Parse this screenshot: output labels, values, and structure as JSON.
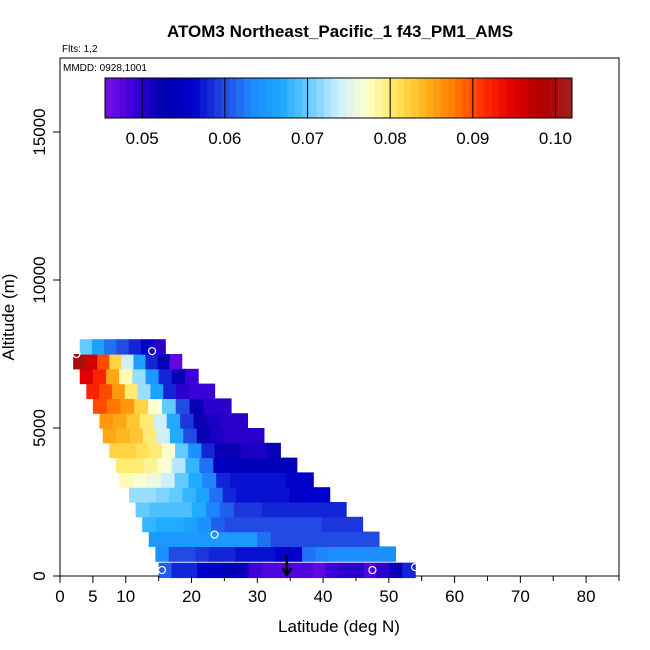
{
  "chart_data": {
    "type": "heatmap",
    "title": "ATOM3 Northeast_Pacific_1 f43_PM1_AMS",
    "flights_label": "Flts: 1,2",
    "date_label": "MMDD: 0928,1001",
    "xlabel": "Latitude (deg N)",
    "ylabel": "Altitude (m)",
    "xlim": [
      0,
      85
    ],
    "ylim": [
      0,
      17500
    ],
    "xticks": [
      0,
      5,
      10,
      20,
      30,
      40,
      50,
      60,
      70,
      80
    ],
    "yticks": [
      0,
      5000,
      10000,
      15000
    ],
    "grid": false,
    "colorbar": {
      "placement": "top-inside",
      "range": [
        0.0455,
        0.102
      ],
      "ticks": [
        0.05,
        0.06,
        0.07,
        0.08,
        0.09,
        0.1
      ],
      "tick_labels": [
        "0.05",
        "0.06",
        "0.07",
        "0.08",
        "0.09",
        "0.10"
      ],
      "colors": [
        "#7A10E6",
        "#3A00D8",
        "#0000B0",
        "#0000CC",
        "#2244E0",
        "#1E88FF",
        "#1AA8FF",
        "#66CCFF",
        "#CCEEFF",
        "#FFFFCC",
        "#FFE45A",
        "#FFB21A",
        "#FF7A00",
        "#FF2A00",
        "#E00000",
        "#B00000",
        "#A02020"
      ]
    },
    "layers": [
      {
        "alt": 200,
        "lat_start": 15,
        "lat_end": 54,
        "cells": [
          0.061,
          0.058,
          0.058,
          0.056,
          0.055,
          0.054,
          0.052,
          0.049,
          0.048,
          0.048,
          0.048,
          0.048,
          0.047,
          0.049,
          0.05,
          0.05,
          0.048,
          0.05,
          0.052,
          0.058
        ]
      },
      {
        "alt": 750,
        "lat_start": 14.5,
        "lat_end": 51,
        "cells": [
          0.064,
          0.06,
          0.06,
          0.059,
          0.058,
          0.058,
          0.057,
          0.057,
          0.057,
          0.056,
          0.056,
          0.062,
          0.063,
          0.064,
          0.064,
          0.064,
          0.064,
          0.064
        ]
      },
      {
        "alt": 1250,
        "lat_start": 13.5,
        "lat_end": 48.5,
        "cells": [
          0.065,
          0.065,
          0.065,
          0.065,
          0.065,
          0.065,
          0.065,
          0.065,
          0.062,
          0.06,
          0.06,
          0.06,
          0.06,
          0.06,
          0.06,
          0.06,
          0.06
        ]
      },
      {
        "alt": 1750,
        "lat_start": 12.5,
        "lat_end": 46,
        "cells": [
          0.068,
          0.067,
          0.067,
          0.066,
          0.064,
          0.061,
          0.06,
          0.06,
          0.06,
          0.06,
          0.06,
          0.06,
          0.06,
          0.059,
          0.059,
          0.059
        ]
      },
      {
        "alt": 2250,
        "lat_start": 11.5,
        "lat_end": 43.5,
        "cells": [
          0.07,
          0.069,
          0.069,
          0.069,
          0.067,
          0.063,
          0.061,
          0.059,
          0.059,
          0.058,
          0.058,
          0.058,
          0.058,
          0.058,
          0.058
        ]
      },
      {
        "alt": 2750,
        "lat_start": 10.5,
        "lat_end": 41,
        "cells": [
          0.072,
          0.072,
          0.071,
          0.07,
          0.068,
          0.066,
          0.062,
          0.058,
          0.057,
          0.057,
          0.057,
          0.057,
          0.056,
          0.056,
          0.056
        ]
      },
      {
        "alt": 3250,
        "lat_start": 9,
        "lat_end": 38.5,
        "cells": [
          0.078,
          0.077,
          0.076,
          0.074,
          0.07,
          0.067,
          0.063,
          0.058,
          0.057,
          0.057,
          0.057,
          0.057,
          0.056,
          0.056
        ]
      },
      {
        "alt": 3750,
        "lat_start": 8.5,
        "lat_end": 36,
        "cells": [
          0.08,
          0.08,
          0.079,
          0.077,
          0.073,
          0.068,
          0.062,
          0.055,
          0.054,
          0.054,
          0.054,
          0.054,
          0.054
        ]
      },
      {
        "alt": 4250,
        "lat_start": 7.5,
        "lat_end": 33.5,
        "cells": [
          0.082,
          0.082,
          0.081,
          0.08,
          0.077,
          0.07,
          0.064,
          0.058,
          0.052,
          0.052,
          0.051,
          0.051,
          0.052
        ]
      },
      {
        "alt": 4750,
        "lat_start": 6.5,
        "lat_end": 31,
        "cells": [
          0.085,
          0.084,
          0.083,
          0.08,
          0.074,
          0.067,
          0.06,
          0.052,
          0.051,
          0.05,
          0.05,
          0.05
        ]
      },
      {
        "alt": 5250,
        "lat_start": 6,
        "lat_end": 28.5,
        "cells": [
          0.086,
          0.085,
          0.083,
          0.08,
          0.074,
          0.067,
          0.059,
          0.052,
          0.051,
          0.05,
          0.05
        ]
      },
      {
        "alt": 5750,
        "lat_start": 5,
        "lat_end": 26,
        "cells": [
          0.09,
          0.088,
          0.086,
          0.082,
          0.077,
          0.07,
          0.06,
          0.052,
          0.05,
          0.05
        ]
      },
      {
        "alt": 6250,
        "lat_start": 4,
        "lat_end": 23.5,
        "cells": [
          0.092,
          0.09,
          0.086,
          0.08,
          0.072,
          0.066,
          0.058,
          0.05,
          0.049,
          0.049
        ]
      },
      {
        "alt": 6750,
        "lat_start": 3,
        "lat_end": 21,
        "cells": [
          0.095,
          0.092,
          0.085,
          0.078,
          0.072,
          0.065,
          0.058,
          0.052,
          0.049
        ]
      },
      {
        "alt": 7250,
        "lat_start": 2,
        "lat_end": 18.5,
        "cells": [
          0.1,
          0.096,
          0.09,
          0.082,
          0.074,
          0.066,
          0.058,
          0.052,
          0.047
        ]
      },
      {
        "alt": 7750,
        "lat_start": 3,
        "lat_end": 16,
        "cells": [
          0.07,
          0.066,
          0.062,
          0.06,
          0.058,
          0.056,
          0.05
        ]
      }
    ],
    "points": [
      {
        "x": 2.5,
        "y": 7500
      },
      {
        "x": 14,
        "y": 7600
      },
      {
        "x": 23.5,
        "y": 1400
      },
      {
        "x": 15.5,
        "y": 200
      },
      {
        "x": 47.5,
        "y": 200
      },
      {
        "x": 54,
        "y": 300
      }
    ],
    "arrow": {
      "x": 34.5,
      "y_from": 700,
      "y_to": 0
    }
  }
}
